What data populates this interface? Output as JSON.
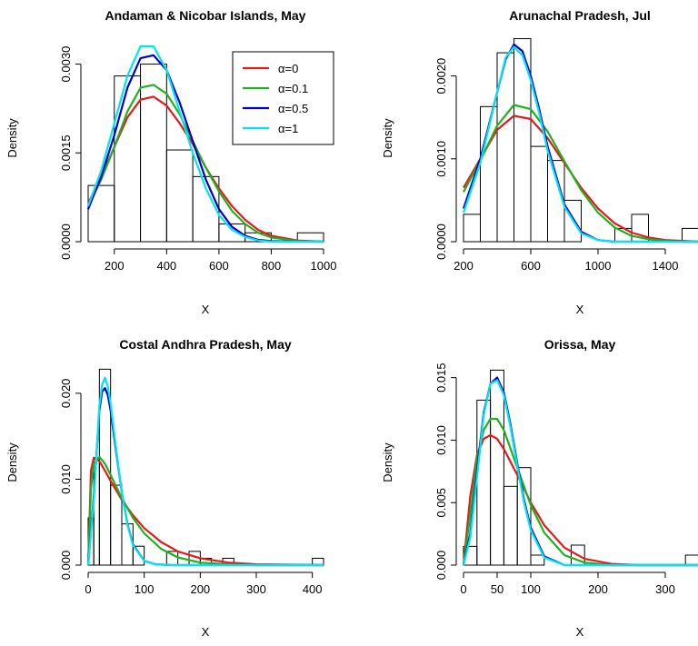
{
  "chart_data": [
    {
      "type": "histogram+line",
      "title": "Andaman & Nicobar Islands, May",
      "xlabel": "X",
      "ylabel": "Density",
      "xlim": [
        100,
        1000
      ],
      "ylim": [
        0,
        0.0035
      ],
      "xticks": [
        200,
        400,
        600,
        800,
        1000
      ],
      "yticks": [
        0.0,
        0.0015,
        0.003
      ],
      "ytick_labels": [
        "0.0000",
        "0.0015",
        "0.0030"
      ],
      "bins": [
        [
          100,
          200,
          0.00095
        ],
        [
          200,
          300,
          0.0028
        ],
        [
          300,
          400,
          0.003
        ],
        [
          400,
          500,
          0.00155
        ],
        [
          500,
          600,
          0.0011
        ],
        [
          600,
          700,
          0.0003
        ],
        [
          700,
          800,
          0.00015
        ],
        [
          800,
          900,
          0.0
        ],
        [
          900,
          1000,
          0.00015
        ]
      ],
      "series": [
        {
          "name": "α=0",
          "color": "#e41a1c",
          "x": [
            100,
            150,
            200,
            250,
            300,
            350,
            400,
            450,
            500,
            550,
            600,
            650,
            700,
            750,
            800,
            900,
            1000
          ],
          "values": [
            0.00065,
            0.0011,
            0.0016,
            0.0021,
            0.0024,
            0.00245,
            0.0023,
            0.002,
            0.00165,
            0.00125,
            0.0009,
            0.0006,
            0.00037,
            0.0002,
            0.0001,
            2e-05,
            0.0
          ]
        },
        {
          "name": "α=0.1",
          "color": "#1fb21f",
          "x": [
            100,
            150,
            200,
            250,
            300,
            350,
            400,
            450,
            500,
            550,
            600,
            650,
            700,
            750,
            800,
            900,
            1000
          ],
          "values": [
            0.0006,
            0.00105,
            0.0016,
            0.0022,
            0.0026,
            0.00265,
            0.0025,
            0.00215,
            0.0017,
            0.00125,
            0.00085,
            0.00052,
            0.0003,
            0.00015,
            7e-05,
            1e-05,
            0.0
          ]
        },
        {
          "name": "α=0.5",
          "color": "#0000cc",
          "x": [
            100,
            150,
            200,
            250,
            300,
            350,
            400,
            450,
            500,
            550,
            600,
            650,
            700,
            750,
            800,
            900,
            1000
          ],
          "values": [
            0.00055,
            0.0011,
            0.0018,
            0.0026,
            0.0031,
            0.00315,
            0.0029,
            0.00235,
            0.0017,
            0.00105,
            0.00055,
            0.00025,
            0.0001,
            3e-05,
            1e-05,
            0.0,
            0.0
          ]
        },
        {
          "name": "α=1",
          "color": "#00e5ee",
          "x": [
            100,
            150,
            200,
            250,
            300,
            350,
            400,
            450,
            500,
            550,
            600,
            650,
            700,
            750,
            800,
            900,
            1000
          ],
          "values": [
            0.0006,
            0.0012,
            0.002,
            0.0028,
            0.0033,
            0.0033,
            0.0029,
            0.0022,
            0.0015,
            0.0009,
            0.00045,
            0.0002,
            8e-05,
            2e-05,
            0.0,
            0.0,
            0.0
          ]
        }
      ],
      "legend": {
        "position": "top-right",
        "labels": [
          "α=0",
          "α=0.1",
          "α=0.5",
          "α=1"
        ]
      }
    },
    {
      "type": "histogram+line",
      "title": "Arunachal Pradesh, Jul",
      "xlabel": "X",
      "ylabel": "Density",
      "xlim": [
        200,
        1600
      ],
      "ylim": [
        0,
        0.0025
      ],
      "xticks": [
        200,
        600,
        1000,
        1400
      ],
      "yticks": [
        0.0,
        0.001,
        0.002
      ],
      "ytick_labels": [
        "0.0000",
        "0.0010",
        "0.0020"
      ],
      "bins": [
        [
          200,
          300,
          0.00033
        ],
        [
          300,
          400,
          0.00163
        ],
        [
          400,
          500,
          0.00228
        ],
        [
          500,
          600,
          0.00245
        ],
        [
          600,
          700,
          0.00115
        ],
        [
          700,
          800,
          0.00098
        ],
        [
          800,
          900,
          0.0005
        ],
        [
          900,
          1000,
          0.0
        ],
        [
          1000,
          1100,
          0.0
        ],
        [
          1100,
          1200,
          0.00016
        ],
        [
          1200,
          1300,
          0.00033
        ],
        [
          1300,
          1400,
          0.0
        ],
        [
          1400,
          1500,
          0.0
        ],
        [
          1500,
          1600,
          0.00016
        ]
      ],
      "series": [
        {
          "name": "α=0",
          "color": "#e41a1c",
          "x": [
            200,
            300,
            400,
            500,
            600,
            700,
            800,
            900,
            1000,
            1100,
            1200,
            1300,
            1400,
            1500,
            1600
          ],
          "values": [
            0.00065,
            0.001,
            0.00135,
            0.00152,
            0.00148,
            0.00125,
            0.00095,
            0.00065,
            0.0004,
            0.00022,
            0.00011,
            5e-05,
            2e-05,
            1e-05,
            0.0
          ]
        },
        {
          "name": "α=0.1",
          "color": "#1fb21f",
          "x": [
            200,
            300,
            400,
            500,
            600,
            700,
            800,
            900,
            1000,
            1100,
            1200,
            1300,
            1400,
            1500,
            1600
          ],
          "values": [
            0.0006,
            0.00098,
            0.0014,
            0.00165,
            0.0016,
            0.00133,
            0.00097,
            0.00062,
            0.00035,
            0.00017,
            7e-05,
            3e-05,
            1e-05,
            0.0,
            0.0
          ]
        },
        {
          "name": "α=0.5",
          "color": "#0000cc",
          "x": [
            200,
            300,
            400,
            450,
            500,
            550,
            600,
            650,
            700,
            800,
            900,
            1000,
            1100,
            1200,
            1600
          ],
          "values": [
            0.0004,
            0.001,
            0.0018,
            0.0022,
            0.00238,
            0.0023,
            0.002,
            0.0016,
            0.00115,
            0.00045,
            0.00012,
            2e-05,
            0.0,
            0.0,
            0.0
          ]
        },
        {
          "name": "α=1",
          "color": "#00e5ee",
          "x": [
            200,
            300,
            400,
            450,
            500,
            550,
            600,
            650,
            700,
            800,
            900,
            1000,
            1100,
            1200,
            1600
          ],
          "values": [
            0.00035,
            0.00095,
            0.0018,
            0.00222,
            0.00235,
            0.00225,
            0.00195,
            0.00155,
            0.0011,
            0.00042,
            0.0001,
            2e-05,
            0.0,
            0.0,
            0.0
          ]
        }
      ]
    },
    {
      "type": "histogram+line",
      "title": "Costal Andhra Pradesh, May",
      "xlabel": "X",
      "ylabel": "Density",
      "xlim": [
        0,
        420
      ],
      "ylim": [
        0,
        0.024
      ],
      "xticks": [
        0,
        100,
        200,
        300,
        400
      ],
      "yticks": [
        0.0,
        0.01,
        0.02
      ],
      "ytick_labels": [
        "0.000",
        "0.010",
        "0.020"
      ],
      "bins": [
        [
          0,
          10,
          0.0055
        ],
        [
          10,
          20,
          0.0125
        ],
        [
          20,
          40,
          0.0228
        ],
        [
          40,
          60,
          0.0093
        ],
        [
          60,
          80,
          0.0048
        ],
        [
          80,
          100,
          0.0022
        ],
        [
          100,
          140,
          0.0
        ],
        [
          140,
          160,
          0.0016
        ],
        [
          160,
          180,
          0.0
        ],
        [
          180,
          200,
          0.0016
        ],
        [
          200,
          220,
          0.0008
        ],
        [
          220,
          240,
          0.0
        ],
        [
          240,
          260,
          0.0008
        ],
        [
          260,
          400,
          0.0
        ],
        [
          400,
          420,
          0.0008
        ]
      ],
      "series": [
        {
          "name": "α=0",
          "color": "#e41a1c",
          "x": [
            0,
            5,
            10,
            20,
            30,
            40,
            60,
            80,
            100,
            130,
            160,
            200,
            250,
            300,
            420
          ],
          "values": [
            0.0,
            0.011,
            0.0125,
            0.0121,
            0.011,
            0.0098,
            0.0076,
            0.0058,
            0.0043,
            0.0027,
            0.0016,
            0.0008,
            0.0003,
            0.0001,
            0.0
          ]
        },
        {
          "name": "α=0.1",
          "color": "#1fb21f",
          "x": [
            0,
            5,
            10,
            20,
            30,
            40,
            60,
            80,
            100,
            130,
            160,
            200,
            250,
            300,
            420
          ],
          "values": [
            0.0,
            0.009,
            0.0118,
            0.0126,
            0.0118,
            0.0105,
            0.0078,
            0.0055,
            0.0037,
            0.0019,
            0.0009,
            0.0003,
            0.0001,
            0.0,
            0.0
          ]
        },
        {
          "name": "α=0.5",
          "color": "#0000cc",
          "x": [
            0,
            10,
            20,
            25,
            30,
            35,
            40,
            50,
            60,
            70,
            80,
            100,
            120,
            150,
            420
          ],
          "values": [
            0.0,
            0.008,
            0.018,
            0.0202,
            0.0206,
            0.0198,
            0.018,
            0.0132,
            0.0085,
            0.0048,
            0.0024,
            0.0005,
            0.0001,
            0.0,
            0.0
          ]
        },
        {
          "name": "α=1",
          "color": "#00e5ee",
          "x": [
            0,
            10,
            20,
            25,
            30,
            35,
            40,
            50,
            60,
            70,
            80,
            100,
            120,
            150,
            420
          ],
          "values": [
            0.0,
            0.0075,
            0.0185,
            0.021,
            0.0218,
            0.0208,
            0.0188,
            0.0135,
            0.0085,
            0.0047,
            0.0023,
            0.0005,
            0.0001,
            0.0,
            0.0
          ]
        }
      ]
    },
    {
      "type": "histogram+line",
      "title": "Orissa, May",
      "xlabel": "X",
      "ylabel": "Density",
      "xlim": [
        0,
        350
      ],
      "ylim": [
        0,
        0.0165
      ],
      "xticks": [
        0,
        50,
        100,
        200,
        300
      ],
      "yticks": [
        0.0,
        0.005,
        0.01,
        0.015
      ],
      "ytick_labels": [
        "0.000",
        "0.005",
        "0.010",
        "0.015"
      ],
      "bins": [
        [
          0,
          20,
          0.0015
        ],
        [
          20,
          40,
          0.0132
        ],
        [
          40,
          60,
          0.0156
        ],
        [
          60,
          80,
          0.0063
        ],
        [
          80,
          100,
          0.0078
        ],
        [
          100,
          120,
          0.0008
        ],
        [
          120,
          140,
          0.0
        ],
        [
          140,
          160,
          0.0
        ],
        [
          160,
          180,
          0.0016
        ],
        [
          180,
          330,
          0.0
        ],
        [
          330,
          350,
          0.0008
        ]
      ],
      "series": [
        {
          "name": "α=0",
          "color": "#e41a1c",
          "x": [
            0,
            10,
            20,
            30,
            40,
            50,
            60,
            80,
            100,
            120,
            150,
            180,
            220,
            260,
            350
          ],
          "values": [
            0.0,
            0.0055,
            0.0088,
            0.0101,
            0.0104,
            0.0101,
            0.0093,
            0.0072,
            0.005,
            0.0032,
            0.0014,
            0.0005,
            0.0001,
            0.0,
            0.0
          ]
        },
        {
          "name": "α=0.1",
          "color": "#1fb21f",
          "x": [
            0,
            10,
            20,
            30,
            40,
            50,
            60,
            80,
            100,
            120,
            150,
            180,
            220,
            260,
            350
          ],
          "values": [
            0.0,
            0.004,
            0.0085,
            0.0108,
            0.0117,
            0.0117,
            0.0108,
            0.0078,
            0.0048,
            0.0026,
            0.0008,
            0.0002,
            0.0,
            0.0,
            0.0
          ]
        },
        {
          "name": "α=0.5",
          "color": "#0000cc",
          "x": [
            0,
            10,
            20,
            30,
            40,
            50,
            60,
            70,
            80,
            90,
            100,
            120,
            150,
            180,
            350
          ],
          "values": [
            0.0,
            0.0025,
            0.0075,
            0.0122,
            0.0145,
            0.015,
            0.0138,
            0.0112,
            0.0081,
            0.0052,
            0.003,
            0.0007,
            0.0,
            0.0,
            0.0
          ]
        },
        {
          "name": "α=1",
          "color": "#00e5ee",
          "x": [
            0,
            10,
            20,
            30,
            40,
            50,
            60,
            70,
            80,
            90,
            100,
            120,
            150,
            180,
            350
          ],
          "values": [
            0.0,
            0.0022,
            0.007,
            0.012,
            0.0145,
            0.0148,
            0.0136,
            0.011,
            0.0079,
            0.005,
            0.0028,
            0.0006,
            0.0,
            0.0,
            0.0
          ]
        }
      ]
    }
  ]
}
